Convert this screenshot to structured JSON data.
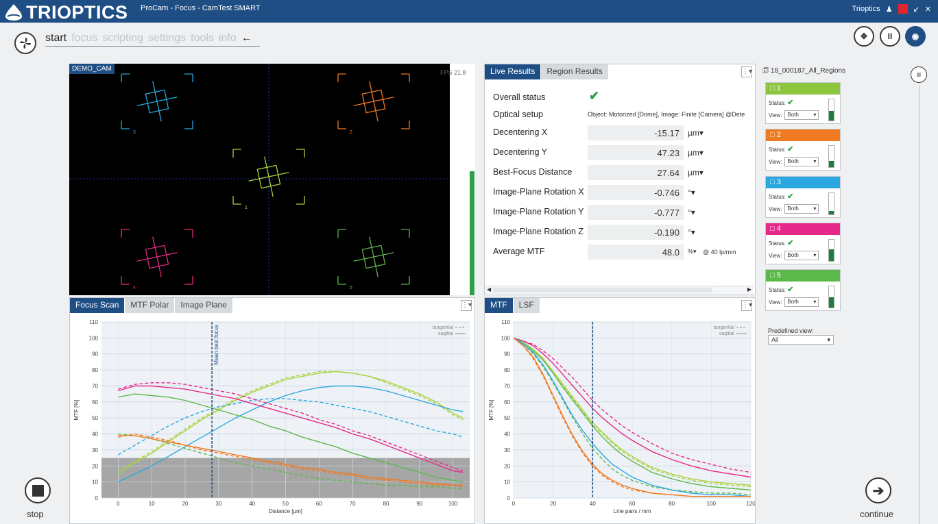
{
  "titlebar": {
    "brand": "TRIOPTICS",
    "app_title": "ProCam - Focus - CamTest SMART",
    "user": "Trioptics"
  },
  "nav": {
    "menu": [
      {
        "label": "start",
        "active": true
      },
      {
        "label": "focus",
        "active": false
      },
      {
        "label": "scripting",
        "active": false
      },
      {
        "label": "settings",
        "active": false
      },
      {
        "label": "tools",
        "active": false
      },
      {
        "label": "info",
        "active": false
      }
    ],
    "back_icon": "←",
    "right_buttons": [
      "move-icon",
      "pause-icon",
      "camera-icon"
    ]
  },
  "camera": {
    "label": "DEMO_CAM",
    "fps": "FPS 21.8",
    "targets": [
      {
        "id": "3",
        "color": "#2aa7e0"
      },
      {
        "id": "2",
        "color": "#f07a21"
      },
      {
        "id": "1",
        "color": "#a8d23e"
      },
      {
        "id": "4",
        "color": "#e6288a"
      },
      {
        "id": "5",
        "color": "#5cb84a"
      }
    ]
  },
  "live_results": {
    "tabs": [
      "Live Results",
      "Region Results"
    ],
    "rows": [
      {
        "label": "Overall status",
        "type": "status"
      },
      {
        "label": "Optical setup",
        "type": "text",
        "value": "Object: Motorized [Dome], Image: Finite [Camera] @Dete"
      },
      {
        "label": "Decentering X",
        "value": "-15.17",
        "unit": "µm▾"
      },
      {
        "label": "Decentering Y",
        "value": "47.23",
        "unit": "µm▾"
      },
      {
        "label": "Best-Focus Distance",
        "value": "27.64",
        "unit": "µm▾"
      },
      {
        "label": "Image-Plane Rotation X",
        "value": "-0.746",
        "unit": "°▾"
      },
      {
        "label": "Image-Plane Rotation Y",
        "value": "-0.777",
        "unit": "°▾"
      },
      {
        "label": "Image-Plane Rotation Z",
        "value": "-0.190",
        "unit": "°▾"
      },
      {
        "label": "Average MTF",
        "value": "48.0",
        "unit": "%▾",
        "extra": "@ 40 lp/mm"
      }
    ]
  },
  "regions": {
    "file": "18_000187_All_Regions",
    "status_label": "Status:",
    "view_label": "View:",
    "items": [
      {
        "id": "1",
        "color": "#8cc63f",
        "view": "Both",
        "meter": 0.45
      },
      {
        "id": "2",
        "color": "#f07a21",
        "view": "Both",
        "meter": 0.3
      },
      {
        "id": "3",
        "color": "#2aa7e0",
        "view": "Both",
        "meter": 0.15
      },
      {
        "id": "4",
        "color": "#e6288a",
        "view": "Both",
        "meter": 0.55
      },
      {
        "id": "5",
        "color": "#5cb84a",
        "view": "Both",
        "meter": 0.5
      }
    ],
    "predefined_label": "Predefined view:",
    "predefined_value": "All"
  },
  "focus_scan": {
    "tabs": [
      "Focus Scan",
      "MTF Polar",
      "Image Plane"
    ],
    "legend": [
      "tangential",
      "sagittal"
    ],
    "marker_label": "Mean best focus"
  },
  "mtf_panel": {
    "tabs": [
      "MTF",
      "LSF"
    ],
    "legend": [
      "tangential",
      "sagittal"
    ]
  },
  "buttons": {
    "stop": "stop",
    "continue": "continue"
  },
  "chart_data": [
    {
      "type": "line",
      "title": "",
      "xlabel": "Distance [µm]",
      "ylabel": "MTF [%]",
      "xlim": [
        -5,
        105
      ],
      "ylim": [
        0,
        110
      ],
      "xticks": [
        0,
        10,
        20,
        30,
        40,
        50,
        60,
        70,
        80,
        90,
        100
      ],
      "yticks": [
        0,
        10,
        20,
        30,
        40,
        50,
        60,
        70,
        80,
        90,
        100,
        110
      ],
      "threshold_band": [
        0,
        25
      ],
      "marker_x": 28,
      "x": [
        0,
        5,
        10,
        15,
        20,
        25,
        30,
        35,
        40,
        45,
        50,
        55,
        60,
        65,
        70,
        75,
        80,
        85,
        90,
        95,
        100,
        103
      ],
      "series": [
        {
          "color": "#a8d23e",
          "dash": false,
          "values": [
            15,
            22,
            28,
            35,
            42,
            49,
            55,
            61,
            66,
            70,
            74,
            76,
            78,
            79,
            78,
            76,
            73,
            69,
            65,
            60,
            53,
            50
          ]
        },
        {
          "color": "#a8d23e",
          "dash": true,
          "values": [
            17,
            23,
            29,
            36,
            43,
            50,
            56,
            62,
            67,
            71,
            75,
            77,
            79,
            79,
            78,
            76,
            72,
            68,
            64,
            59,
            52,
            49
          ]
        },
        {
          "color": "#2aa7e0",
          "dash": false,
          "values": [
            10,
            15,
            20,
            26,
            32,
            38,
            44,
            50,
            55,
            60,
            64,
            67,
            69,
            70,
            70,
            69,
            67,
            64,
            61,
            58,
            55,
            54
          ]
        },
        {
          "color": "#2aa7e0",
          "dash": true,
          "values": [
            27,
            33,
            39,
            45,
            50,
            54,
            57,
            59,
            61,
            62,
            62,
            61,
            60,
            58,
            56,
            54,
            51,
            48,
            45,
            42,
            40,
            38
          ]
        },
        {
          "color": "#e6288a",
          "dash": false,
          "values": [
            67,
            70,
            70,
            69,
            68,
            66,
            64,
            62,
            59,
            56,
            53,
            50,
            47,
            44,
            40,
            37,
            33,
            29,
            25,
            21,
            17,
            16
          ]
        },
        {
          "color": "#e6288a",
          "dash": true,
          "values": [
            68,
            71,
            72,
            72,
            71,
            69,
            67,
            65,
            62,
            59,
            56,
            53,
            49,
            46,
            42,
            39,
            35,
            31,
            27,
            23,
            19,
            17
          ]
        },
        {
          "color": "#5cb84a",
          "dash": false,
          "values": [
            63,
            65,
            64,
            63,
            61,
            58,
            55,
            52,
            49,
            45,
            42,
            38,
            35,
            32,
            28,
            25,
            22,
            19,
            16,
            13,
            11,
            10
          ]
        },
        {
          "color": "#5cb84a",
          "dash": true,
          "values": [
            40,
            39,
            37,
            34,
            31,
            28,
            25,
            22,
            20,
            18,
            16,
            14,
            12,
            11,
            10,
            9,
            8,
            8,
            7,
            7,
            6,
            6
          ]
        },
        {
          "color": "#f07a21",
          "dash": false,
          "values": [
            39,
            39,
            37,
            35,
            33,
            31,
            29,
            27,
            25,
            23,
            21,
            19,
            18,
            16,
            15,
            13,
            12,
            11,
            10,
            9,
            8,
            8
          ]
        },
        {
          "color": "#f07a21",
          "dash": true,
          "values": [
            38,
            40,
            38,
            36,
            33,
            30,
            28,
            26,
            24,
            22,
            20,
            18,
            17,
            15,
            14,
            12,
            11,
            10,
            9,
            8,
            8,
            7
          ]
        }
      ]
    },
    {
      "type": "line",
      "title": "",
      "xlabel": "Line pairs / mm",
      "ylabel": "MTF [%]",
      "xlim": [
        0,
        120
      ],
      "ylim": [
        0,
        110
      ],
      "xticks": [
        0,
        20,
        40,
        60,
        80,
        100,
        120
      ],
      "yticks": [
        0,
        10,
        20,
        30,
        40,
        50,
        60,
        70,
        80,
        90,
        100,
        110
      ],
      "marker_x": 40,
      "x": [
        0,
        5,
        10,
        15,
        20,
        25,
        30,
        35,
        40,
        45,
        50,
        55,
        60,
        70,
        80,
        90,
        100,
        110,
        120
      ],
      "series": [
        {
          "color": "#e6288a",
          "dash": false,
          "values": [
            100,
            98,
            95,
            90,
            84,
            77,
            70,
            63,
            56,
            50,
            45,
            40,
            36,
            29,
            24,
            20,
            17,
            15,
            13
          ]
        },
        {
          "color": "#e6288a",
          "dash": true,
          "values": [
            100,
            98,
            96,
            92,
            87,
            81,
            75,
            68,
            61,
            55,
            50,
            45,
            41,
            34,
            28,
            24,
            21,
            18,
            16
          ]
        },
        {
          "color": "#a8d23e",
          "dash": false,
          "values": [
            100,
            97,
            93,
            87,
            79,
            71,
            63,
            55,
            47,
            41,
            35,
            30,
            26,
            19,
            15,
            12,
            10,
            9,
            8
          ]
        },
        {
          "color": "#a8d23e",
          "dash": true,
          "values": [
            100,
            97,
            93,
            86,
            78,
            70,
            62,
            54,
            46,
            40,
            34,
            29,
            25,
            18,
            14,
            11,
            9,
            8,
            7
          ]
        },
        {
          "color": "#5cb84a",
          "dash": false,
          "values": [
            100,
            97,
            92,
            86,
            78,
            69,
            61,
            53,
            45,
            38,
            32,
            27,
            23,
            16,
            12,
            9,
            7,
            6,
            5
          ]
        },
        {
          "color": "#5cb84a",
          "dash": true,
          "values": [
            100,
            96,
            90,
            82,
            72,
            61,
            50,
            40,
            31,
            24,
            18,
            14,
            11,
            7,
            5,
            4,
            3,
            3,
            2
          ]
        },
        {
          "color": "#2aa7e0",
          "dash": false,
          "values": [
            100,
            96,
            91,
            83,
            73,
            62,
            51,
            42,
            34,
            27,
            21,
            17,
            13,
            8,
            5,
            3,
            2,
            2,
            1
          ]
        },
        {
          "color": "#f07a21",
          "dash": false,
          "values": [
            100,
            95,
            88,
            77,
            64,
            51,
            39,
            29,
            21,
            15,
            11,
            8,
            6,
            3,
            2,
            1,
            1,
            1,
            1
          ]
        },
        {
          "color": "#f07a21",
          "dash": true,
          "values": [
            100,
            95,
            87,
            76,
            63,
            50,
            38,
            28,
            20,
            14,
            10,
            7,
            5,
            3,
            2,
            1,
            1,
            1,
            1
          ]
        }
      ]
    }
  ]
}
